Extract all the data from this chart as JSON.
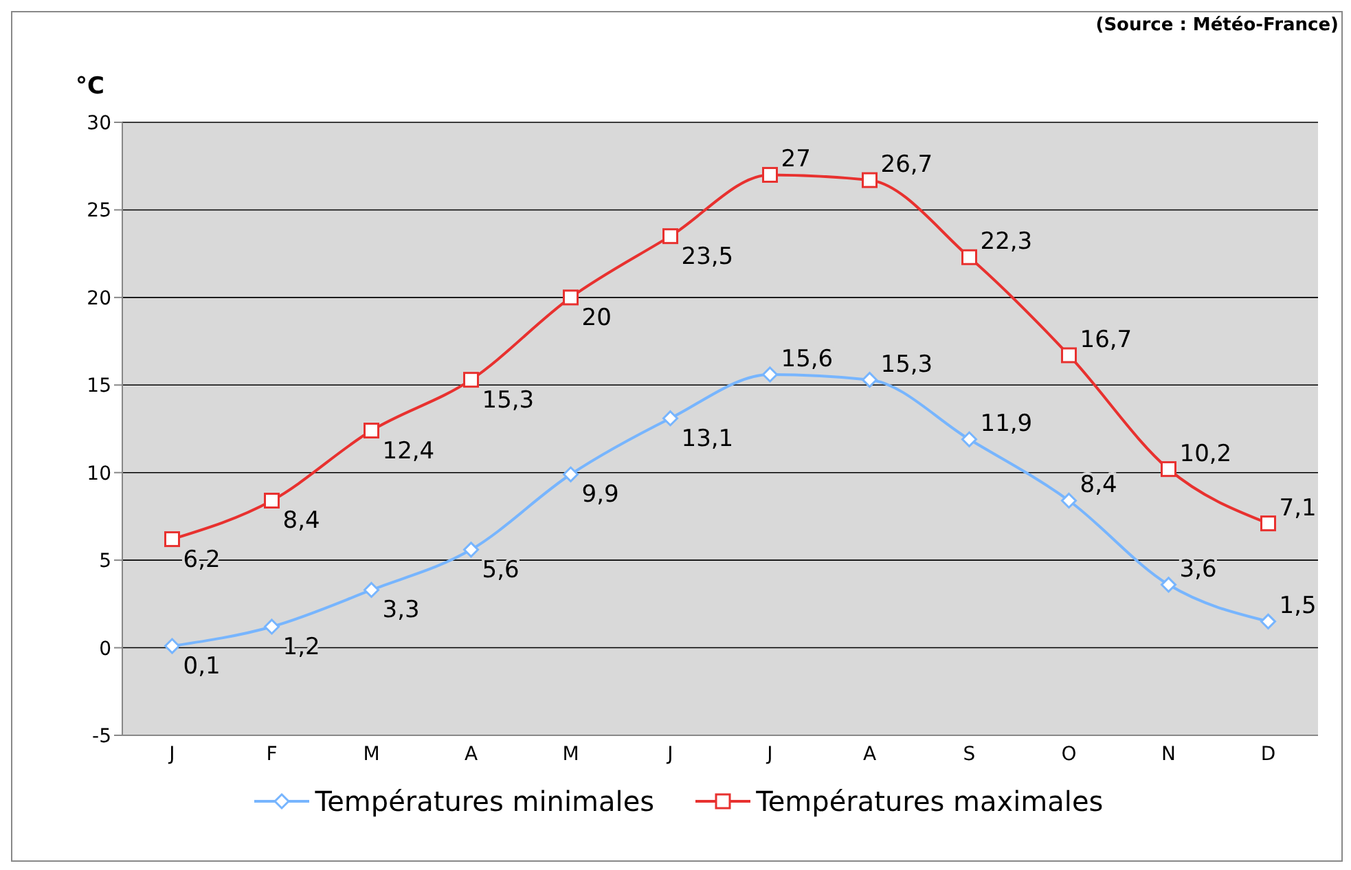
{
  "chart_data": {
    "type": "line",
    "ylabel": "°C",
    "annotations": [
      "(Source : Météo-France)"
    ],
    "categories": [
      "J",
      "F",
      "M",
      "A",
      "M",
      "J",
      "J",
      "A",
      "S",
      "O",
      "N",
      "D"
    ],
    "series": [
      {
        "name": "Températures minimales",
        "color": "#77b5fe",
        "marker": "diamond",
        "values": [
          0.1,
          1.2,
          3.3,
          5.6,
          9.9,
          13.1,
          15.6,
          15.3,
          11.9,
          8.4,
          3.6,
          1.5
        ],
        "value_labels": [
          "0,1",
          "1,2",
          "3,3",
          "5,6",
          "9,9",
          "13,1",
          "15,6",
          "15,3",
          "11,9",
          "8,4",
          "3,6",
          "1,5"
        ]
      },
      {
        "name": "Températures maximales",
        "color": "#e8312f",
        "marker": "square",
        "values": [
          6.2,
          8.4,
          12.4,
          15.3,
          20,
          23.5,
          27,
          26.7,
          22.3,
          16.7,
          10.2,
          7.1
        ],
        "value_labels": [
          "6,2",
          "8,4",
          "12,4",
          "15,3",
          "20",
          "23,5",
          "27",
          "26,7",
          "22,3",
          "16,7",
          "10,2",
          "7,1"
        ]
      }
    ],
    "ylim": [
      -5,
      30
    ],
    "yticks": [
      -5,
      0,
      5,
      10,
      15,
      20,
      25,
      30
    ],
    "grid": "y",
    "legend": "bottom",
    "line_style": "solid"
  }
}
